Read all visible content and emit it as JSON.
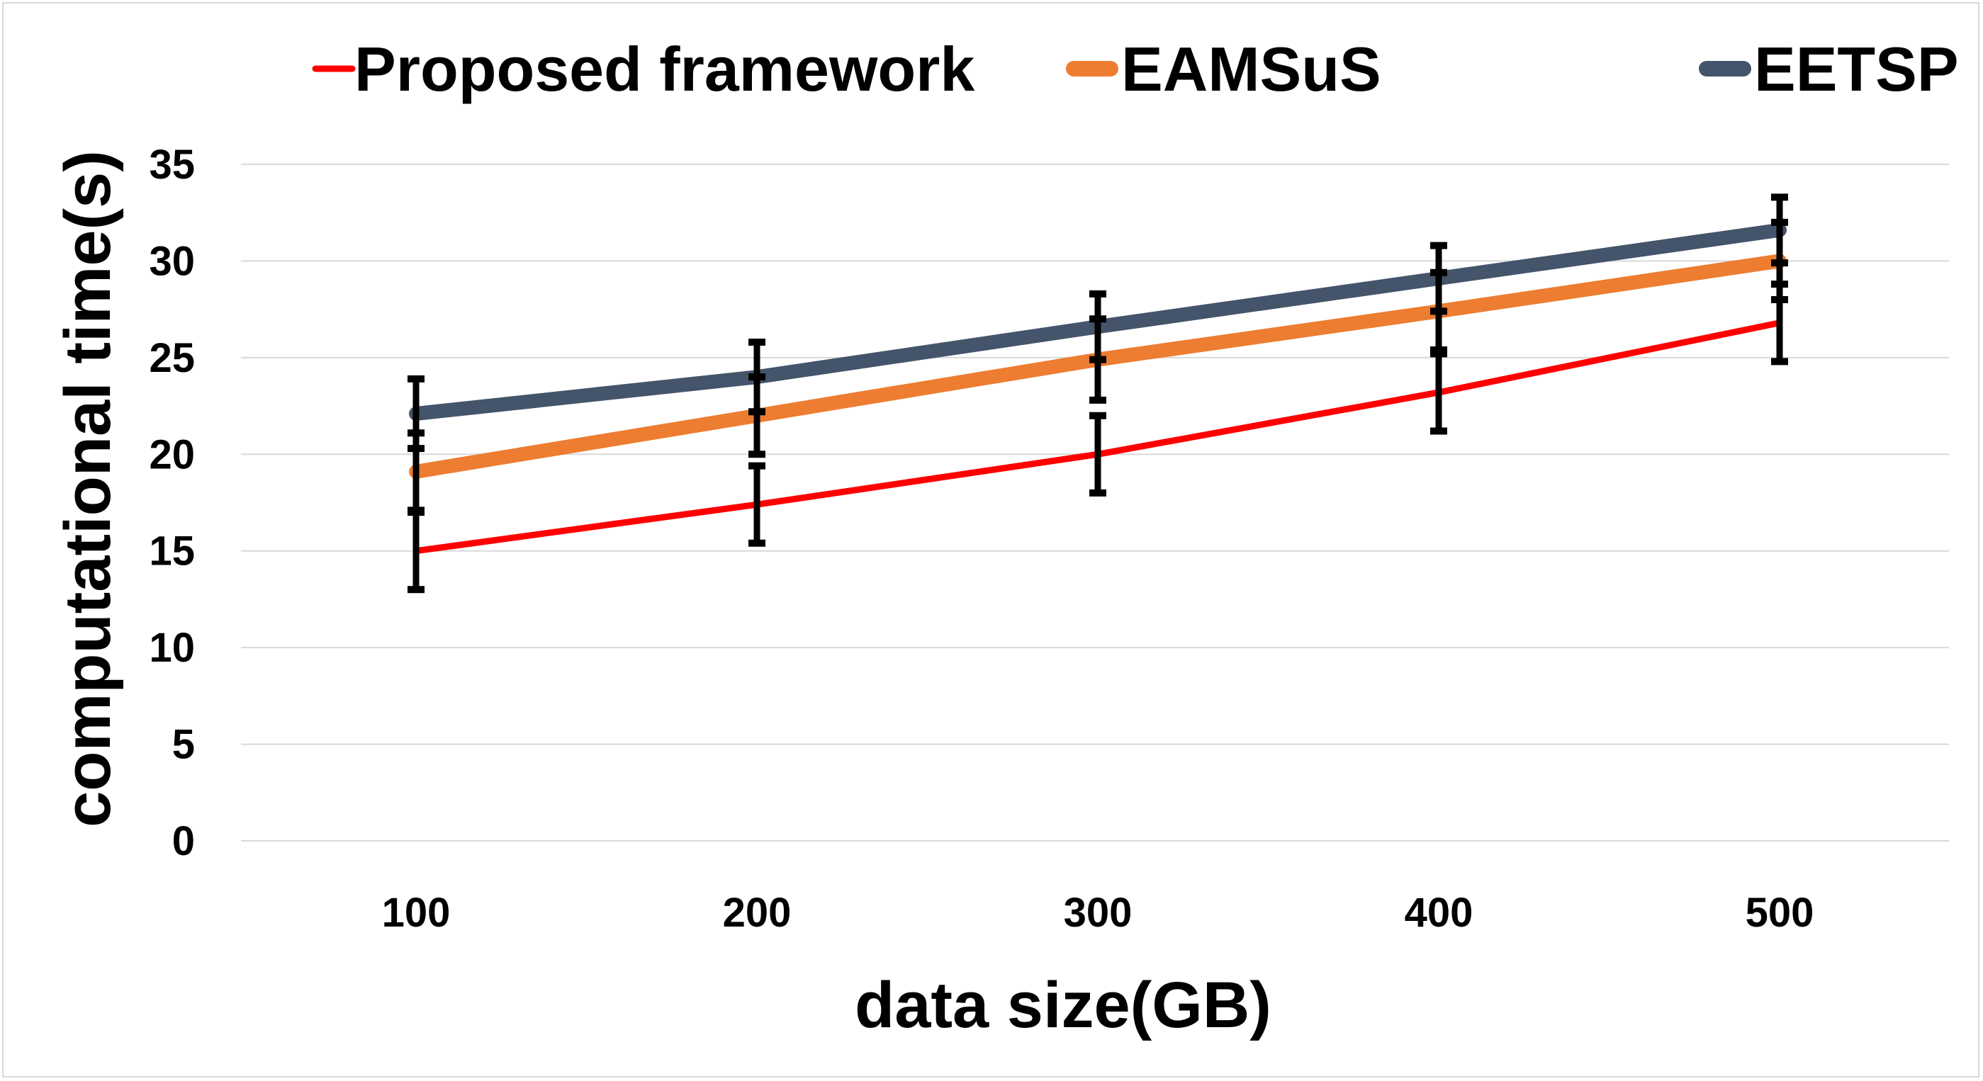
{
  "chart_data": {
    "type": "line",
    "title": "",
    "xlabel": "data size(GB)",
    "ylabel": "computational time(s)",
    "x": [
      100,
      200,
      300,
      400,
      500
    ],
    "x_tick_labels": [
      "100",
      "200",
      "300",
      "400",
      "500"
    ],
    "ylim": [
      0,
      35
    ],
    "y_ticks": [
      0,
      5,
      10,
      15,
      20,
      25,
      30,
      35
    ],
    "grid": "horizontal",
    "legend_position": "top",
    "series": [
      {
        "name": "Proposed framework",
        "color": "#ff0000",
        "values": [
          15,
          17.4,
          20,
          23.2,
          26.8
        ],
        "errors": [
          2,
          2,
          2,
          2,
          2
        ]
      },
      {
        "name": "EAMSuS",
        "color": "#ed7d31",
        "values": [
          19.1,
          22,
          24.9,
          27.4,
          30
        ],
        "errors": [
          2,
          2,
          2.1,
          2,
          2
        ]
      },
      {
        "name": "EETSP",
        "color": "#44546a",
        "values": [
          22.1,
          24,
          26.6,
          29.1,
          31.6
        ],
        "errors": [
          1.8,
          1.8,
          1.7,
          1.7,
          1.7
        ]
      }
    ]
  }
}
